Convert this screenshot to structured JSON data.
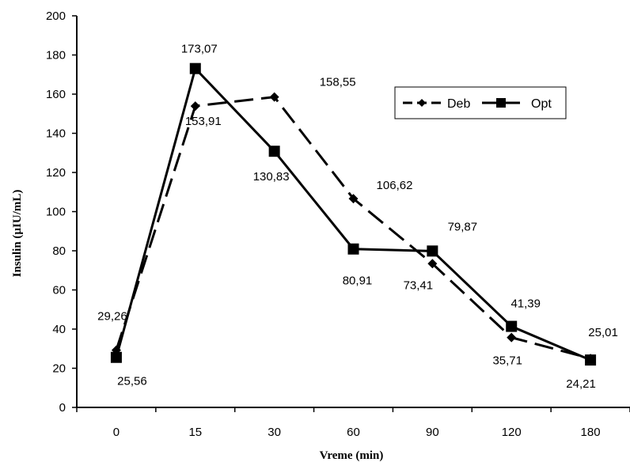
{
  "chart_data": {
    "type": "line",
    "title": "",
    "xlabel": "Vreme (min)",
    "ylabel": "Insulin (µIU/mL)",
    "categories": [
      "0",
      "15",
      "30",
      "60",
      "90",
      "120",
      "180"
    ],
    "ylim": [
      0,
      200
    ],
    "yticks": [
      "0",
      "20",
      "40",
      "60",
      "80",
      "100",
      "120",
      "140",
      "160",
      "180",
      "200"
    ],
    "grid": false,
    "legend_position": "top-right",
    "series": [
      {
        "name": "Deb",
        "marker": "diamond",
        "line_style": "dashed",
        "color": "#000000",
        "values": [
          29.26,
          153.91,
          158.55,
          106.62,
          73.41,
          35.71,
          25.01
        ],
        "labels": [
          "29,26",
          "153,91",
          "158,55",
          "106,62",
          "73,41",
          "35,71",
          "25,01"
        ]
      },
      {
        "name": "Opt",
        "marker": "square",
        "line_style": "solid",
        "color": "#000000",
        "values": [
          25.56,
          173.07,
          130.83,
          80.91,
          79.87,
          41.39,
          24.21
        ],
        "labels": [
          "25,56",
          "173,07",
          "130,83",
          "80,91",
          "79,87",
          "41,39",
          "24,21"
        ]
      }
    ]
  }
}
